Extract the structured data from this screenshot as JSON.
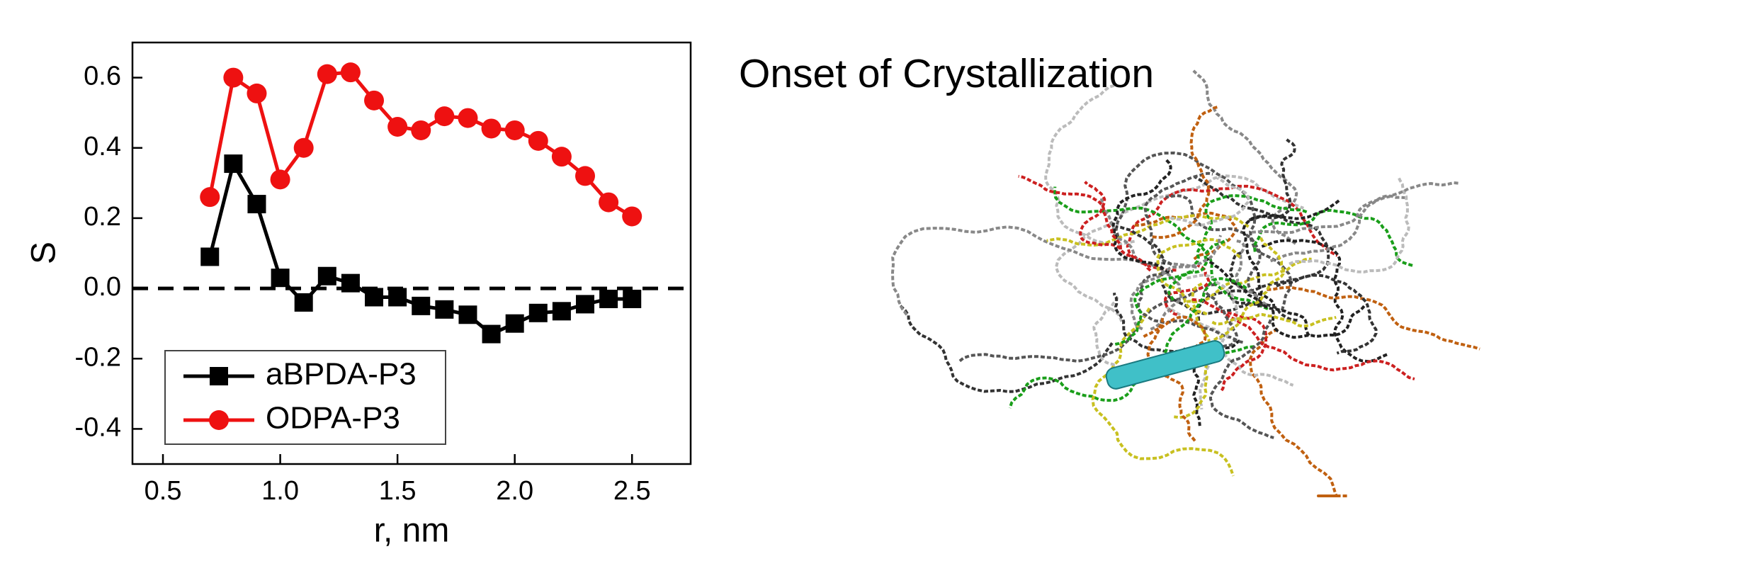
{
  "chart_data": {
    "type": "line",
    "x": [
      0.7,
      0.8,
      0.9,
      1.0,
      1.1,
      1.2,
      1.3,
      1.4,
      1.5,
      1.6,
      1.7,
      1.8,
      1.9,
      2.0,
      2.1,
      2.2,
      2.3,
      2.4,
      2.5
    ],
    "series": [
      {
        "name": "aBPDA-P3",
        "color": "#000000",
        "marker": "square",
        "values": [
          0.09,
          0.355,
          0.24,
          0.03,
          -0.04,
          0.035,
          0.015,
          -0.025,
          -0.025,
          -0.05,
          -0.06,
          -0.075,
          -0.13,
          -0.1,
          -0.07,
          -0.065,
          -0.045,
          -0.03,
          -0.03
        ]
      },
      {
        "name": "ODPA-P3",
        "color": "#ee1111",
        "marker": "circle",
        "values": [
          0.26,
          0.6,
          0.555,
          0.31,
          0.4,
          0.61,
          0.615,
          0.535,
          0.46,
          0.45,
          0.49,
          0.485,
          0.455,
          0.45,
          0.42,
          0.375,
          0.32,
          0.245,
          0.205
        ]
      }
    ],
    "xlabel": "r, nm",
    "ylabel": "S",
    "xlim": [
      0.37,
      2.75
    ],
    "xticks": [
      0.5,
      {
        "value": 1,
        "label": "1.0"
      },
      1.5,
      {
        "value": 2,
        "label": "2.0"
      },
      2.5
    ],
    "ylim": [
      -0.5,
      0.7
    ],
    "yticks": [
      -0.4,
      -0.2,
      {
        "value": 0,
        "label": "0.0"
      },
      0.2,
      0.4,
      0.6
    ],
    "reference_line": 0,
    "legend": "lower-left"
  },
  "image_title": "Onset of Crystallization"
}
